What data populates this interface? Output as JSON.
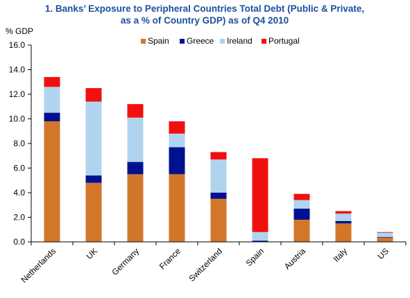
{
  "chart_data": {
    "type": "bar",
    "stacked": true,
    "title_line1": "1. Banks’ Exposure to Peripheral Countries Total Debt (Public & Private,",
    "title_line2": "as a % of Country GDP) as of Q4 2010",
    "ylabel": "% GDP",
    "xlabel": "",
    "ylim": [
      0,
      16
    ],
    "yticks": [
      "0.0",
      "2.0",
      "4.0",
      "6.0",
      "8.0",
      "10.0",
      "12.0",
      "14.0",
      "16.0"
    ],
    "legend_position": "top",
    "grid": false,
    "categories": [
      "Netherlands",
      "UK",
      "Germany",
      "France",
      "Switzerland",
      "Spain",
      "Austria",
      "Italy",
      "US"
    ],
    "series": [
      {
        "name": "Spain",
        "color": "#d2772a",
        "values": [
          9.8,
          4.8,
          5.5,
          5.5,
          3.5,
          0.0,
          1.8,
          1.5,
          0.35
        ]
      },
      {
        "name": "Greece",
        "color": "#00118f",
        "values": [
          0.7,
          0.6,
          1.0,
          2.2,
          0.5,
          0.1,
          0.9,
          0.2,
          0.05
        ]
      },
      {
        "name": "Ireland",
        "color": "#b0d4ee",
        "values": [
          2.1,
          6.0,
          3.6,
          1.1,
          2.7,
          0.7,
          0.7,
          0.6,
          0.35
        ]
      },
      {
        "name": "Portugal",
        "color": "#f20f0f",
        "values": [
          0.8,
          1.1,
          1.1,
          1.0,
          0.6,
          6.0,
          0.5,
          0.2,
          0.05
        ]
      }
    ]
  }
}
